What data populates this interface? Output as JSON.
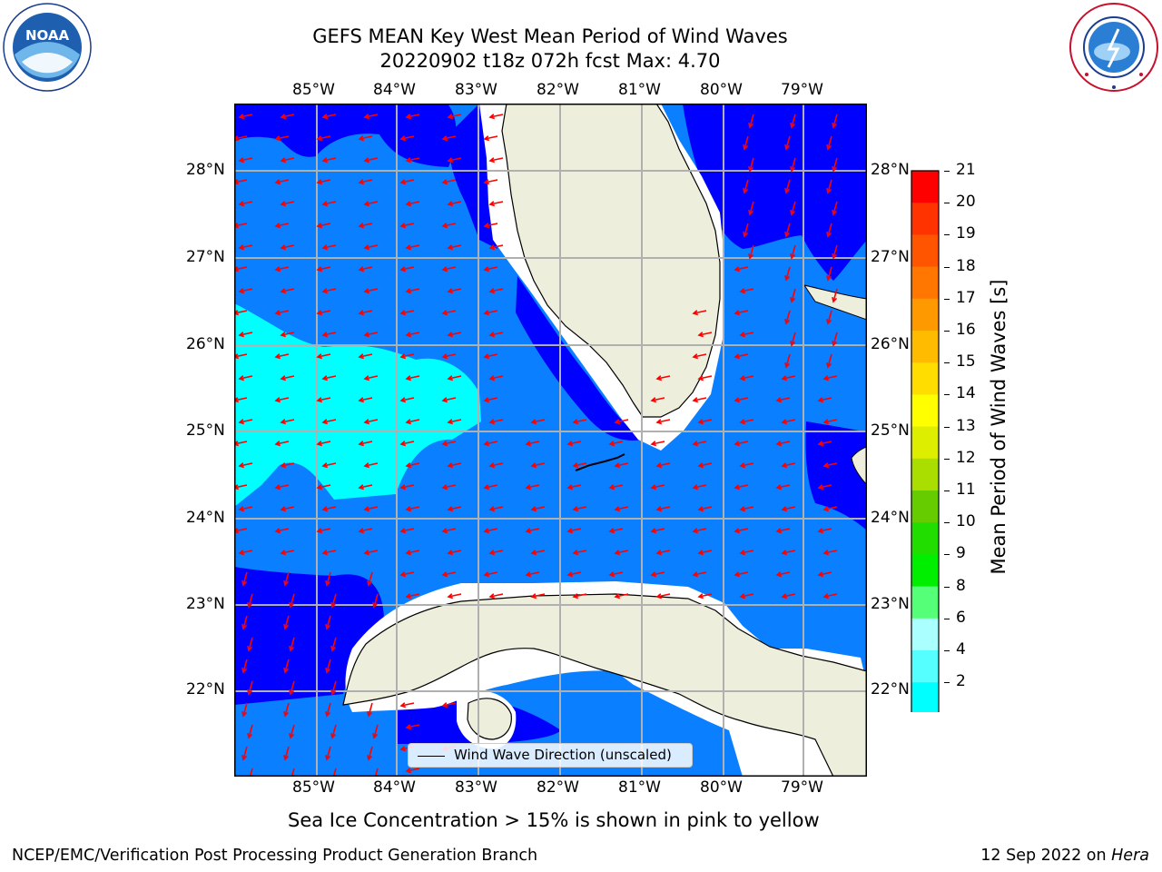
{
  "header": {
    "title_line1": "GEFS MEAN Key West Mean Period of Wind Waves",
    "title_line2": "20220902 t18z 072h fcst   Max: 4.70"
  },
  "logos": {
    "left": "noaa-logo",
    "right": "nws-logo"
  },
  "map": {
    "lon_labels": [
      "85°W",
      "84°W",
      "83°W",
      "82°W",
      "81°W",
      "80°W",
      "79°W"
    ],
    "lat_labels": [
      "28°N",
      "27°N",
      "26°N",
      "25°N",
      "24°N",
      "23°N",
      "22°N"
    ],
    "legend_label": "Wind Wave Direction (unscaled)",
    "colors": {
      "land": "#eeeedc",
      "band_2_4_dark": "#0000ff",
      "band_2_4": "#0a7fff",
      "band_4_6": "#00ffff",
      "ice_free": "#ffffff",
      "arrows": "#ff0000"
    }
  },
  "colorbar": {
    "label": "Mean Period of Wind Waves [s]",
    "ticks": [
      "21",
      "20",
      "19",
      "18",
      "17",
      "16",
      "15",
      "14",
      "13",
      "12",
      "11",
      "10",
      "9",
      "8",
      "6",
      "4",
      "2"
    ],
    "colors_top_to_bottom": [
      "#ff0000",
      "#ff3300",
      "#ff5500",
      "#ff7700",
      "#ff9900",
      "#ffbb00",
      "#ffdd00",
      "#ffff00",
      "#ddee00",
      "#aadd00",
      "#66cc00",
      "#22dd00",
      "#00ee00",
      "#55ff77",
      "#aaffff",
      "#55ffff",
      "#00ffff",
      "#0a7fff"
    ]
  },
  "note": "Sea Ice Concentration > 15% is shown in pink to yellow",
  "footer": {
    "left": "NCEP/EMC/Verification Post Processing Product Generation Branch",
    "right_date": "12 Sep 2022 on ",
    "right_host": "Hera"
  }
}
